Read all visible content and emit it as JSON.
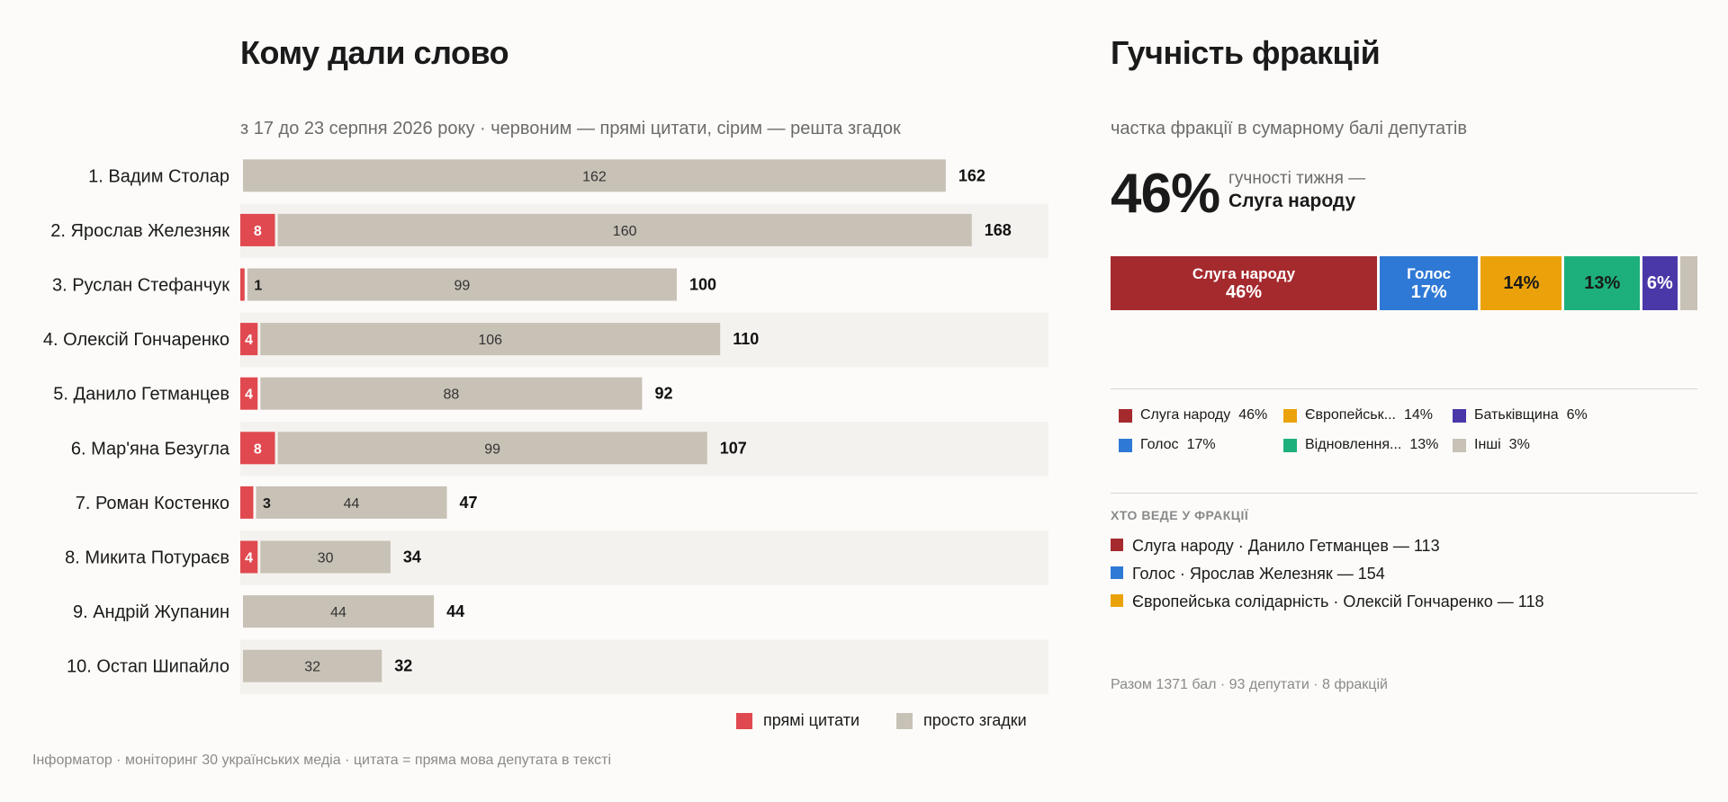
{
  "left": {
    "title": "Кому дали слово",
    "subtitle": "з 17 до 23 серпня 2026 року · червоним — прямі цитати, сірим — решта згадок",
    "legend": {
      "quotes": "прямі цитати",
      "mentions": "просто згадки"
    }
  },
  "chart_data": {
    "type": "bar",
    "stacked": true,
    "orientation": "horizontal",
    "categories": [
      "1. Вадим Столар",
      "2. Ярослав Железняк",
      "3. Руслан Стефанчук",
      "4. Олексій Гончаренко",
      "5. Данило Гетманцев",
      "6. Мар'яна Безугла",
      "7. Роман Костенко",
      "8. Микита Потураєв",
      "9. Андрій Жупанин",
      "10. Остап Шипайло"
    ],
    "series": [
      {
        "name": "прямі цитати",
        "values": [
          0,
          8,
          1,
          4,
          4,
          8,
          3,
          4,
          0,
          0
        ]
      },
      {
        "name": "просто згадки",
        "values": [
          162,
          160,
          99,
          106,
          88,
          99,
          44,
          30,
          44,
          32
        ]
      }
    ],
    "totals": [
      162,
      168,
      100,
      110,
      92,
      107,
      47,
      34,
      44,
      32
    ],
    "colors": {
      "quotes": "#e0494f",
      "mentions": "#c8c1b6",
      "band": "#f4f2ee"
    },
    "legend_position": "bottom-right"
  },
  "right": {
    "title": "Гучність фракцій",
    "subtitle": "частка фракції в сумарному балі депутатів",
    "big_value": "46%",
    "big_caption_1": "гучності тижня —",
    "big_caption_2": "Слуга народу",
    "stack": [
      {
        "name": "Слуга народу",
        "pct": "46%",
        "share": 46,
        "color": "#a52a2e",
        "text": "#ffffff"
      },
      {
        "name": "Голос",
        "pct": "17%",
        "share": 17,
        "color": "#2f79d6",
        "text": "#ffffff"
      },
      {
        "name": "",
        "pct": "14%",
        "share": 14,
        "color": "#eba20a",
        "text": "#1a1a1a"
      },
      {
        "name": "",
        "pct": "13%",
        "share": 13,
        "color": "#1eb07c",
        "text": "#1a1a1a"
      },
      {
        "name": "",
        "pct": "6%",
        "share": 6,
        "color": "#4a38a8",
        "text": "#ffffff"
      },
      {
        "name": "",
        "pct": "",
        "share": 3,
        "color": "#c8c1b6",
        "text": "#1a1a1a"
      }
    ],
    "factions_legend": [
      {
        "name": "Слуга народу",
        "pct": "46%",
        "color": "#a52a2e"
      },
      {
        "name": "Голос",
        "pct": "17%",
        "color": "#2f79d6"
      },
      {
        "name": "Європейськ...",
        "pct": "14%",
        "color": "#eba20a"
      },
      {
        "name": "Відновлення...",
        "pct": "13%",
        "color": "#1eb07c"
      },
      {
        "name": "Батьківщина",
        "pct": "6%",
        "color": "#4a38a8"
      },
      {
        "name": "Інші",
        "pct": "3%",
        "color": "#c8c1b6"
      }
    ],
    "leaders_title": "ХТО ВЕДЕ У ФРАКЦІЇ",
    "leaders": [
      {
        "text": "Слуга народу · Данило Гетманцев — 113",
        "color": "#a52a2e"
      },
      {
        "text": "Голос · Ярослав Железняк — 154",
        "color": "#2f79d6"
      },
      {
        "text": "Європейська солідарність · Олексій Гончаренко — 118",
        "color": "#eba20a"
      }
    ],
    "summary": "Разом 1371 бал · 93 депутати · 8 фракцій"
  },
  "footer": "Інформатор · моніторинг 30 українських медіа · цитата = пряма мова депутата в тексті"
}
